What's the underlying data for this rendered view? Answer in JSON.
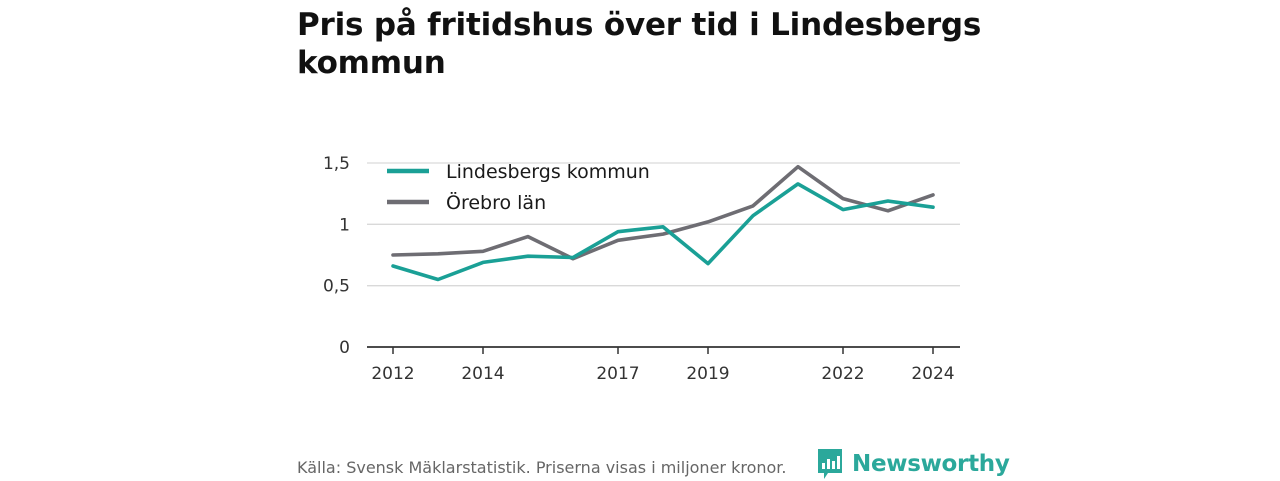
{
  "title": "Pris på fritidshus över tid i Lindesbergs kommun",
  "source": "Källa: Svensk Mäklarstatistik. Priserna visas i miljoner kronor.",
  "brand": {
    "name": "Newsworthy",
    "icon": "newsworthy-logo-icon",
    "color": "#2ba89b"
  },
  "chart_data": {
    "type": "line",
    "x": [
      2012,
      2013,
      2014,
      2015,
      2016,
      2017,
      2018,
      2019,
      2020,
      2021,
      2022,
      2023,
      2024
    ],
    "x_ticks": [
      "2012",
      "2014",
      "2017",
      "2019",
      "2022",
      "2024"
    ],
    "y_ticks": [
      "0",
      "0,5",
      "1",
      "1,5"
    ],
    "ylim": [
      0,
      1.5
    ],
    "grid": true,
    "legend": "top-left",
    "series": [
      {
        "name": "Lindesbergs kommun",
        "color": "#1aa096",
        "values": [
          0.66,
          0.55,
          0.69,
          0.74,
          0.73,
          0.94,
          0.98,
          0.68,
          1.07,
          1.33,
          1.12,
          1.19,
          1.14
        ]
      },
      {
        "name": "Örebro län",
        "color": "#6e6d73",
        "values": [
          0.75,
          0.76,
          0.78,
          0.9,
          0.72,
          0.87,
          0.92,
          1.02,
          1.15,
          1.47,
          1.21,
          1.11,
          1.24
        ]
      }
    ]
  }
}
